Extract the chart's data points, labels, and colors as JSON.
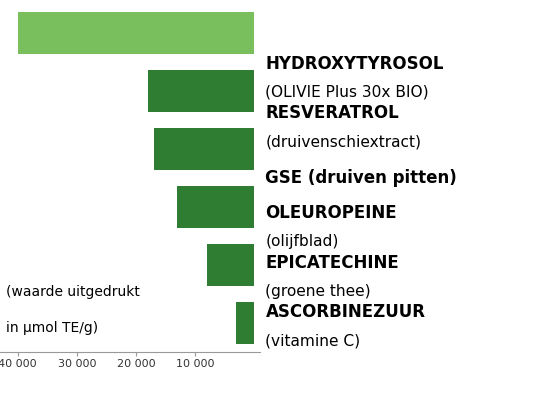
{
  "categories": [
    "ASCORBINEZUUR\n(vitamine C)",
    "EPICATECHINE\n(groene thee)",
    "OLEUROPEINE\n(olijfblad)",
    "GSE (druiven pitten)",
    "RESVERATROL\n(druivenschiextract)",
    "HYDROXYTYROSOL\n(OLIVIE Plus 30x BIO)"
  ],
  "values": [
    3000,
    8000,
    13000,
    17000,
    18000,
    40000
  ],
  "bar_colors": [
    "#2e7d32",
    "#2e7d32",
    "#2e7d32",
    "#2e7d32",
    "#2e7d32",
    "#7abf5e"
  ],
  "xlim_left": 43000,
  "xlim_right": -1000,
  "xticks": [
    40000,
    30000,
    20000,
    10000
  ],
  "xtick_labels": [
    "40 000",
    "30 000",
    "20 000",
    "10 000"
  ],
  "background_color": "#ffffff",
  "note_line1": "(waarde uitgedrukt",
  "note_line2": "in μmol TE/g)",
  "bar_height": 0.72,
  "label_fontsize": 12,
  "note_fontsize": 10,
  "tick_fontsize": 8,
  "spine_color": "#999999"
}
